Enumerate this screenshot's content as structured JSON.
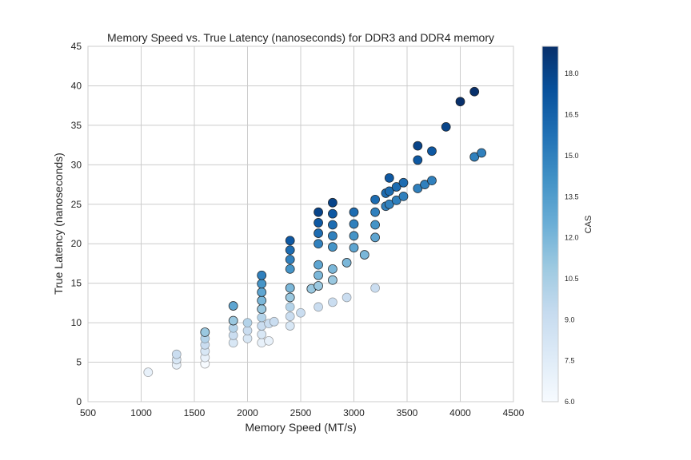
{
  "chart_data": {
    "type": "scatter",
    "title": "Memory Speed vs. True Latency (nanoseconds) for DDR3 and DDR4 memory",
    "xlabel": "Memory Speed (MT/s)",
    "ylabel": "True Latency (nanoseconds)",
    "xlim": [
      500,
      4500
    ],
    "ylim": [
      0,
      45
    ],
    "xticks": [
      500,
      1000,
      1500,
      2000,
      2500,
      3000,
      3500,
      4000,
      4500
    ],
    "yticks": [
      0,
      5,
      10,
      15,
      20,
      25,
      30,
      35,
      40,
      45
    ],
    "grid": true,
    "colorbar": {
      "label": "CAS",
      "range": [
        6,
        19
      ],
      "ticks": [
        "6.0",
        "7.5",
        "9.0",
        "10.5",
        "12.0",
        "13.5",
        "15.0",
        "16.5",
        "18.0"
      ],
      "colormap": [
        "#f7fbff",
        "#deebf7",
        "#c6dbef",
        "#9ecae1",
        "#6baed6",
        "#4292c6",
        "#2171b5",
        "#08519c",
        "#08306b"
      ]
    },
    "points": [
      [
        1066,
        3.73,
        7
      ],
      [
        1333,
        4.67,
        7
      ],
      [
        1333,
        5.33,
        8
      ],
      [
        1333,
        6.0,
        9
      ],
      [
        1600,
        4.8,
        6
      ],
      [
        1600,
        5.6,
        7
      ],
      [
        1600,
        6.4,
        8
      ],
      [
        1600,
        7.2,
        9
      ],
      [
        1600,
        8.0,
        10
      ],
      [
        1600,
        8.8,
        11
      ],
      [
        1866,
        7.46,
        8
      ],
      [
        1866,
        8.4,
        9
      ],
      [
        1866,
        9.33,
        10
      ],
      [
        1866,
        10.26,
        11
      ],
      [
        1866,
        12.13,
        13
      ],
      [
        2000,
        8.0,
        8
      ],
      [
        2000,
        9.0,
        9
      ],
      [
        2000,
        10.0,
        10
      ],
      [
        2133,
        7.47,
        7
      ],
      [
        2133,
        8.53,
        8
      ],
      [
        2133,
        9.6,
        9
      ],
      [
        2133,
        10.67,
        10
      ],
      [
        2133,
        11.73,
        11
      ],
      [
        2133,
        12.8,
        12
      ],
      [
        2133,
        13.86,
        13
      ],
      [
        2133,
        14.93,
        14
      ],
      [
        2133,
        16.0,
        15
      ],
      [
        2200,
        7.7,
        7
      ],
      [
        2200,
        9.9,
        9
      ],
      [
        2250,
        10.13,
        9
      ],
      [
        2400,
        9.6,
        8
      ],
      [
        2400,
        10.8,
        9
      ],
      [
        2400,
        12.0,
        10
      ],
      [
        2400,
        13.2,
        11
      ],
      [
        2400,
        14.4,
        12
      ],
      [
        2400,
        16.8,
        14
      ],
      [
        2400,
        18.0,
        15
      ],
      [
        2400,
        19.2,
        16
      ],
      [
        2400,
        20.4,
        17
      ],
      [
        2500,
        11.25,
        9
      ],
      [
        2600,
        14.3,
        11
      ],
      [
        2666,
        12.0,
        9
      ],
      [
        2666,
        14.66,
        11
      ],
      [
        2666,
        16.0,
        12
      ],
      [
        2666,
        17.33,
        13
      ],
      [
        2666,
        20.0,
        15
      ],
      [
        2666,
        21.33,
        16
      ],
      [
        2666,
        22.66,
        17
      ],
      [
        2666,
        24.0,
        18
      ],
      [
        2800,
        12.6,
        9
      ],
      [
        2800,
        15.4,
        11
      ],
      [
        2800,
        16.8,
        12
      ],
      [
        2800,
        19.6,
        14
      ],
      [
        2800,
        21.0,
        15
      ],
      [
        2800,
        22.4,
        16
      ],
      [
        2800,
        23.8,
        17
      ],
      [
        2800,
        25.2,
        18
      ],
      [
        2933,
        13.2,
        9
      ],
      [
        2933,
        17.6,
        12
      ],
      [
        3000,
        19.5,
        13
      ],
      [
        3000,
        21.0,
        14
      ],
      [
        3000,
        22.5,
        15
      ],
      [
        3000,
        24.0,
        16
      ],
      [
        3100,
        18.6,
        12
      ],
      [
        3200,
        14.4,
        9
      ],
      [
        3200,
        20.8,
        13
      ],
      [
        3200,
        22.4,
        14
      ],
      [
        3200,
        24.0,
        15
      ],
      [
        3200,
        25.6,
        16
      ],
      [
        3300,
        24.75,
        15
      ],
      [
        3300,
        26.4,
        16
      ],
      [
        3333,
        25.0,
        15
      ],
      [
        3333,
        26.66,
        16
      ],
      [
        3333,
        28.33,
        17
      ],
      [
        3400,
        25.5,
        15
      ],
      [
        3400,
        27.2,
        16
      ],
      [
        3466,
        26.0,
        15
      ],
      [
        3466,
        27.73,
        16
      ],
      [
        3600,
        27.0,
        15
      ],
      [
        3600,
        30.6,
        17
      ],
      [
        3600,
        32.4,
        18
      ],
      [
        3666,
        27.5,
        15
      ],
      [
        3733,
        28.0,
        15
      ],
      [
        3733,
        31.73,
        17
      ],
      [
        3866,
        34.8,
        18
      ],
      [
        4000,
        38.0,
        19
      ],
      [
        4133,
        31.0,
        15
      ],
      [
        4133,
        39.26,
        19
      ],
      [
        4200,
        31.5,
        15
      ]
    ]
  }
}
